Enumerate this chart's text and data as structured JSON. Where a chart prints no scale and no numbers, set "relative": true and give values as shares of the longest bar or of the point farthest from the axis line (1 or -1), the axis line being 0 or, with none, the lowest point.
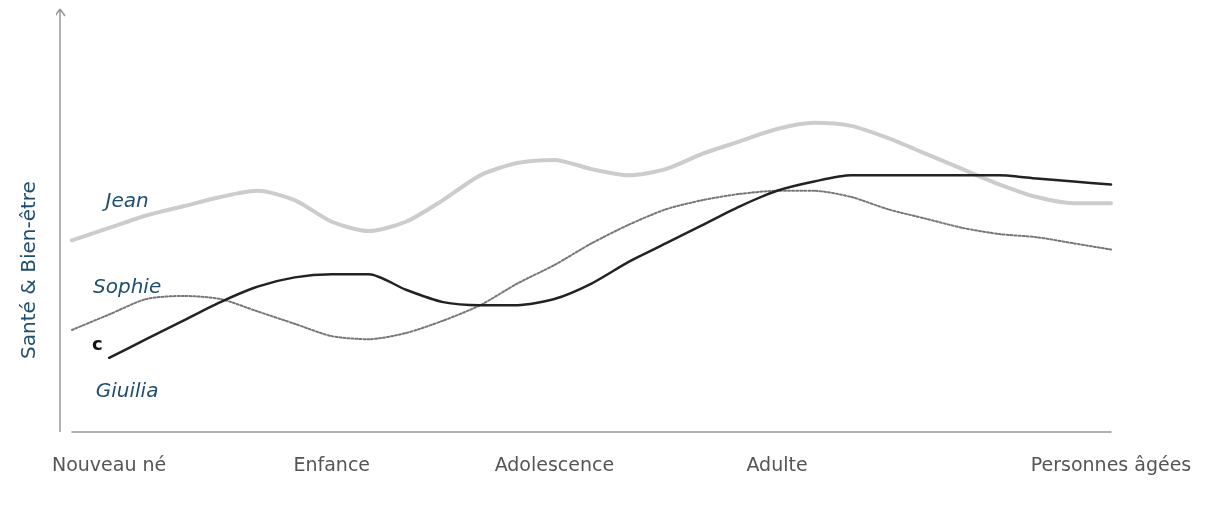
{
  "chart_data": {
    "type": "line",
    "relative": true,
    "ylabel": "Santé & Bien-être",
    "categories": [
      null,
      "Nouveau né",
      null,
      null,
      null,
      null,
      null,
      "Enfance",
      null,
      null,
      null,
      null,
      null,
      "Adolescence",
      null,
      null,
      null,
      null,
      null,
      "Adulte",
      null,
      null,
      null,
      null,
      null,
      null,
      null,
      null,
      "Personnes âgées"
    ],
    "series": [
      {
        "name": "Jean",
        "color": "#cccccc",
        "line_style": "solid",
        "values": [
          0.62,
          0.66,
          0.7,
          0.73,
          0.76,
          0.78,
          0.75,
          0.68,
          0.65,
          0.68,
          0.75,
          0.83,
          0.87,
          0.88,
          0.85,
          0.83,
          0.85,
          0.9,
          0.94,
          0.98,
          1.0,
          0.99,
          0.95,
          0.9,
          0.85,
          0.8,
          0.76,
          0.74,
          0.74
        ]
      },
      {
        "name": "Sophie",
        "color": "#777777",
        "line_style": "dotted",
        "values": [
          0.33,
          0.38,
          0.43,
          0.44,
          0.43,
          0.39,
          0.35,
          0.31,
          0.3,
          0.32,
          0.36,
          0.41,
          0.48,
          0.54,
          0.61,
          0.67,
          0.72,
          0.75,
          0.77,
          0.78,
          0.78,
          0.76,
          0.72,
          0.69,
          0.66,
          0.64,
          0.63,
          0.61,
          0.59
        ]
      },
      {
        "name": "Giuilia",
        "color": "#222222",
        "line_style": "solid",
        "values": [
          null,
          0.24,
          0.3,
          0.36,
          0.42,
          0.47,
          0.5,
          0.51,
          0.51,
          0.46,
          0.42,
          0.41,
          0.41,
          0.43,
          0.48,
          0.55,
          0.61,
          0.67,
          0.73,
          0.78,
          0.81,
          0.83,
          0.83,
          0.83,
          0.83,
          0.83,
          0.82,
          0.81,
          0.8
        ]
      }
    ],
    "annotations": [
      "c"
    ],
    "grid": false,
    "legend": false,
    "marker": "none"
  }
}
